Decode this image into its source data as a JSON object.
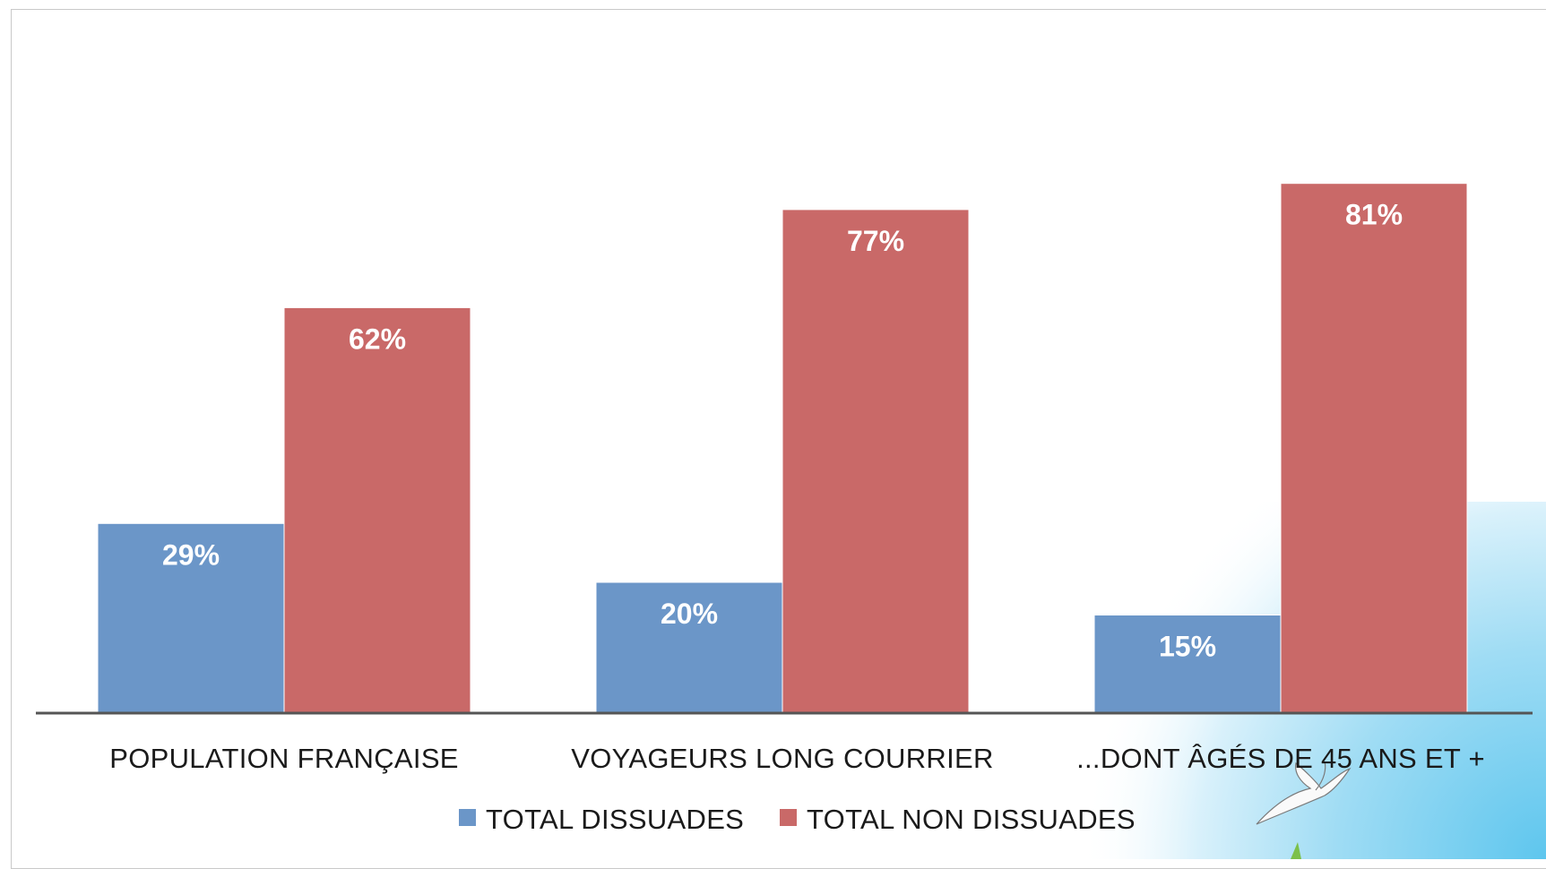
{
  "chart_data": {
    "type": "bar",
    "title": "",
    "xlabel": "",
    "ylabel": "",
    "ylim": [
      0,
      85
    ],
    "grid": false,
    "legend_position": "bottom",
    "categories": [
      "POPULATION FRANÇAISE",
      "VOYAGEURS LONG COURRIER",
      "...DONT ÂGÉS DE 45 ANS ET +"
    ],
    "series": [
      {
        "name": "TOTAL DISSUADES",
        "color": "#6b96c8",
        "values": [
          29,
          20,
          15
        ],
        "labels": [
          "29%",
          "20%",
          "15%"
        ]
      },
      {
        "name": "TOTAL NON DISSUADES",
        "color": "#c96968",
        "values": [
          62,
          77,
          81
        ],
        "labels": [
          "62%",
          "77%",
          "81%"
        ]
      }
    ]
  },
  "decoration": {
    "corner_icon": "seagull-icon"
  }
}
